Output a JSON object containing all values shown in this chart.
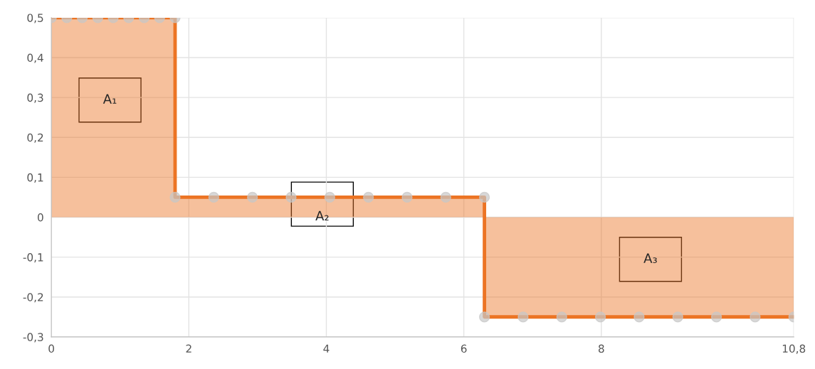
{
  "chart_data": {
    "type": "area",
    "marker": "circle",
    "grid": true,
    "legend": false,
    "x": [
      0,
      0.225,
      0.45,
      0.675,
      0.9,
      1.125,
      1.35,
      1.575,
      1.8,
      1.8,
      2.3625,
      2.925,
      3.4875,
      4.05,
      4.6125,
      5.175,
      5.7375,
      6.3,
      6.3,
      6.8625,
      7.425,
      7.9875,
      8.55,
      9.1125,
      9.675,
      10.2375,
      10.8
    ],
    "series": [
      {
        "color": "#ec7424",
        "values": [
          0.5,
          0.5,
          0.5,
          0.5,
          0.5,
          0.5,
          0.5,
          0.5,
          0.5,
          0.05,
          0.05,
          0.05,
          0.05,
          0.05,
          0.05,
          0.05,
          0.05,
          0.05,
          -0.25,
          -0.25,
          -0.25,
          -0.25,
          -0.25,
          -0.25,
          -0.25,
          -0.25,
          -0.25
        ]
      }
    ],
    "xlim": [
      0,
      10.8
    ],
    "xticks": [
      0,
      2,
      4,
      6,
      8,
      {
        "value": 10.8,
        "label": "10,8"
      }
    ],
    "ylim": [
      -0.3,
      0.5
    ],
    "yticks": [
      {
        "value": -0.3,
        "label": "-0,3"
      },
      {
        "value": -0.2,
        "label": "-0,2"
      },
      {
        "value": -0.1,
        "label": "-0,1"
      },
      0,
      {
        "value": 0.1,
        "label": "0,1"
      },
      {
        "value": 0.2,
        "label": "0,2"
      },
      {
        "value": 0.3,
        "label": "0,3"
      },
      {
        "value": 0.4,
        "label": "0,4"
      },
      {
        "value": 0.5,
        "label": "0,5"
      }
    ],
    "annotations": [
      "A₁",
      "A₂",
      "A₃"
    ]
  }
}
